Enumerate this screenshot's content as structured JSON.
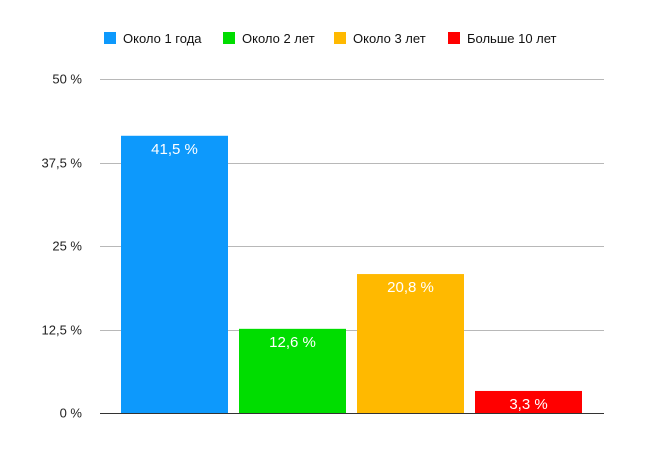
{
  "chart_data": {
    "type": "bar",
    "categories": [
      "Около 1 года",
      "Около 2 лет",
      "Около 3 лет",
      "Больше 10 лет"
    ],
    "values": [
      41.5,
      12.6,
      20.8,
      3.3
    ],
    "value_labels": [
      "41,5 %",
      "12,6 %",
      "20,8 %",
      "3,3 %"
    ],
    "colors": [
      "#0d99fc",
      "#00dd00",
      "#ffb900",
      "#ff0000"
    ],
    "ylim": [
      0,
      50
    ],
    "yticks": [
      0,
      12.5,
      25,
      37.5,
      50
    ],
    "ytick_labels": [
      "0 %",
      "12,5 %",
      "25 %",
      "37,5 %",
      "50 %"
    ],
    "grid": true,
    "legend_position": "top",
    "gridline_color": "#b8b8b8"
  }
}
